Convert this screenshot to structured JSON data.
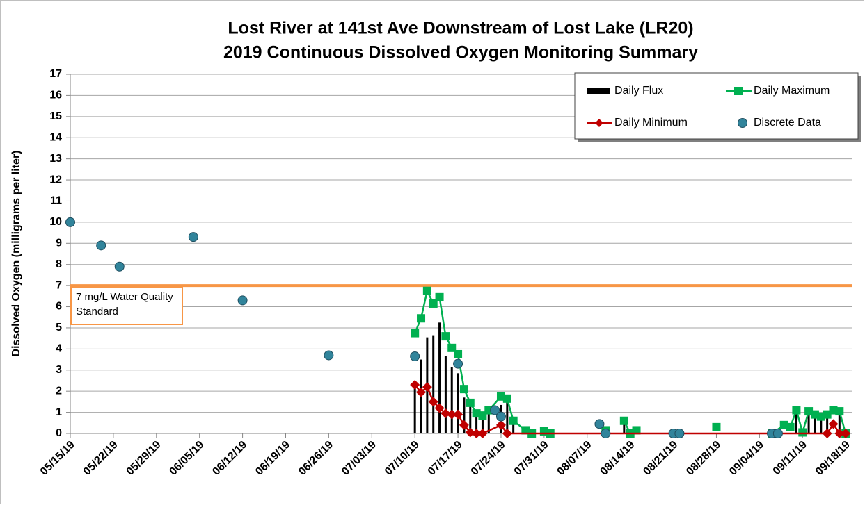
{
  "chart_data": {
    "type": "line",
    "title": "Lost River at 141st Ave Downstream of Lost Lake (LR20)",
    "subtitle": "2019 Continuous Dissolved Oxygen Monitoring Summary",
    "y_label": "Dissolved Oxygen (milligrams per liter)",
    "xlim": [
      "05/15/19",
      "09/19/19"
    ],
    "xticks": [
      "05/15/19",
      "05/22/19",
      "05/29/19",
      "06/05/19",
      "06/12/19",
      "06/19/19",
      "06/26/19",
      "07/03/19",
      "07/10/19",
      "07/17/19",
      "07/24/19",
      "07/31/19",
      "08/07/19",
      "08/14/19",
      "08/21/19",
      "08/28/19",
      "09/04/19",
      "09/11/19",
      "09/18/19"
    ],
    "ylim": [
      0,
      17
    ],
    "yticks": [
      0,
      1,
      2,
      3,
      4,
      5,
      6,
      7,
      8,
      9,
      10,
      11,
      12,
      13,
      14,
      15,
      16,
      17
    ],
    "grid": true,
    "legend": "upper right",
    "reference_line": {
      "value": 7,
      "color": "#f79646",
      "label": "7 mg/L Water Quality Standard"
    },
    "series": [
      {
        "name": "Daily Flux",
        "type": "bar",
        "color": "#000000",
        "x": [
          "07/10/19",
          "07/11/19",
          "07/12/19",
          "07/13/19",
          "07/14/19",
          "07/15/19",
          "07/16/19",
          "07/17/19",
          "07/18/19",
          "07/19/19",
          "07/20/19",
          "07/21/19",
          "07/22/19",
          "07/24/19",
          "07/25/19",
          "07/26/19",
          "08/13/19",
          "09/10/19",
          "09/12/19",
          "09/13/19",
          "09/14/19",
          "09/15/19",
          "09/17/19"
        ],
        "values": [
          2.45,
          3.5,
          4.55,
          4.65,
          5.25,
          3.65,
          3.15,
          2.85,
          1.7,
          1.35,
          0.95,
          0.85,
          1.1,
          1.35,
          1.65,
          0.6,
          0.6,
          1.1,
          1.05,
          0.9,
          0.8,
          0.9,
          1.05
        ]
      },
      {
        "name": "Daily Maximum",
        "type": "line",
        "marker": "square",
        "color": "#00b050",
        "x": [
          "07/10/19",
          "07/11/19",
          "07/12/19",
          "07/13/19",
          "07/14/19",
          "07/15/19",
          "07/16/19",
          "07/17/19",
          "07/18/19",
          "07/19/19",
          "07/20/19",
          "07/21/19",
          "07/22/19",
          "07/24/19",
          "07/25/19",
          "07/26/19",
          "07/28/19",
          "07/29/19",
          "07/30/19",
          "07/31/19",
          "08/01/19",
          "08/02/19",
          "08/10/19",
          "08/11/19",
          "08/13/19",
          "08/14/19",
          "08/15/19",
          "08/16/19",
          "08/28/19",
          "08/29/19",
          "09/06/19",
          "09/08/19",
          "09/09/19",
          "09/10/19",
          "09/11/19",
          "09/12/19",
          "09/13/19",
          "09/14/19",
          "09/15/19",
          "09/16/19",
          "09/17/19",
          "09/18/19"
        ],
        "values": [
          4.75,
          5.45,
          6.75,
          6.15,
          6.45,
          4.6,
          4.05,
          3.75,
          2.1,
          1.45,
          0.95,
          0.85,
          1.1,
          1.75,
          1.65,
          0.6,
          0.15,
          0.0,
          null,
          0.1,
          0.0,
          null,
          0.15,
          null,
          0.6,
          0.0,
          0.15,
          null,
          0.3,
          null,
          0.0,
          0.4,
          0.3,
          1.1,
          0.05,
          1.05,
          0.9,
          0.8,
          0.9,
          1.1,
          1.05,
          0.0
        ]
      },
      {
        "name": "Daily Minimum",
        "type": "line",
        "marker": "diamond",
        "color": "#c00000",
        "x": [
          "07/10/19",
          "07/11/19",
          "07/12/19",
          "07/13/19",
          "07/14/19",
          "07/15/19",
          "07/16/19",
          "07/17/19",
          "07/18/19",
          "07/19/19",
          "07/20/19",
          "07/21/19",
          "07/24/19",
          "07/25/19",
          "09/15/19",
          "09/16/19",
          "09/17/19",
          "09/18/19"
        ],
        "values": [
          2.3,
          1.95,
          2.2,
          1.5,
          1.2,
          0.95,
          0.9,
          0.9,
          0.4,
          0.05,
          0.0,
          0.0,
          0.4,
          0.0,
          0.0,
          0.45,
          0.0,
          0.0
        ]
      },
      {
        "name": "Discrete Data",
        "type": "scatter",
        "color": "#31849b",
        "x": [
          "05/15/19",
          "05/20/19",
          "05/23/19",
          "06/04/19",
          "06/12/19",
          "06/26/19",
          "07/10/19",
          "07/17/19",
          "07/23/19",
          "07/24/19",
          "08/09/19",
          "08/10/19",
          "08/21/19",
          "08/22/19",
          "09/06/19",
          "09/07/19"
        ],
        "values": [
          10.0,
          8.9,
          7.9,
          9.3,
          6.3,
          3.7,
          3.65,
          3.3,
          1.1,
          0.8,
          0.45,
          0.0,
          0.0,
          0.0,
          0.0,
          0.0
        ]
      }
    ]
  }
}
